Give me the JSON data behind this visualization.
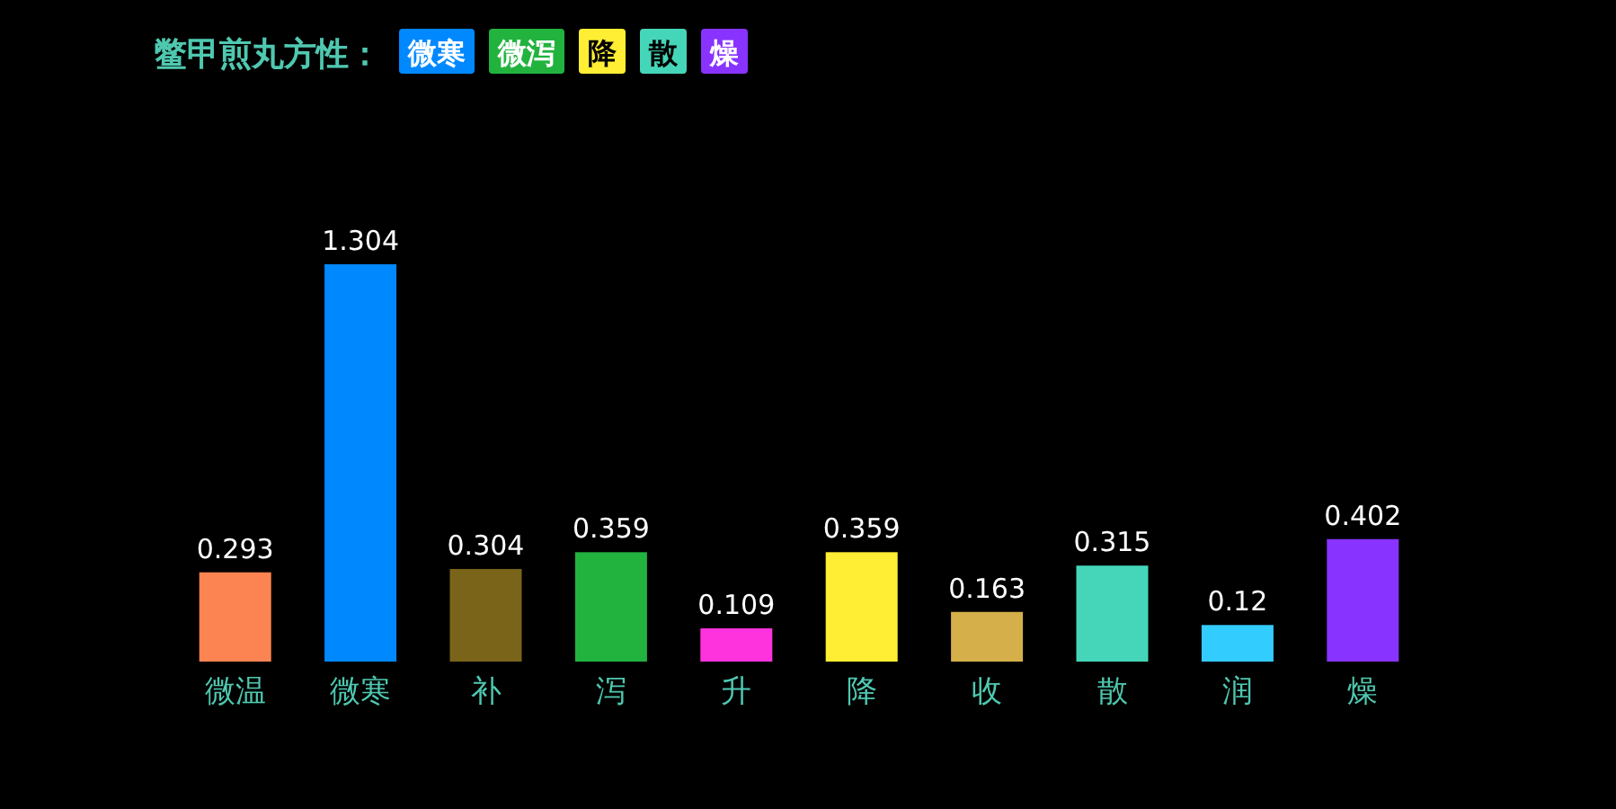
{
  "chart_data": {
    "type": "bar",
    "title": "鳖甲煎丸方性：",
    "annotations": [
      "微寒",
      "微泻",
      "降",
      "散",
      "燥"
    ],
    "categories": [
      "微温",
      "微寒",
      "补",
      "泻",
      "升",
      "降",
      "收",
      "散",
      "润",
      "燥"
    ],
    "values": [
      0.293,
      1.304,
      0.304,
      0.359,
      0.109,
      0.359,
      0.163,
      0.315,
      0.12,
      0.402
    ],
    "colors": [
      "#fc8452",
      "#0088ff",
      "#7a6419",
      "#22b33f",
      "#ff33dd",
      "#ffee33",
      "#d5b04a",
      "#45d6b9",
      "#33ccff",
      "#8833ff"
    ],
    "data_labels": true
  }
}
